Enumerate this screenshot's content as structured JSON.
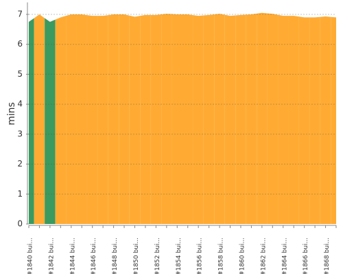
{
  "chart_data": {
    "type": "area",
    "y_label": "mins",
    "categories": [
      "#1840 bui...",
      null,
      "#1842 bui...",
      null,
      "#1844 bui...",
      null,
      "#1846 bui...",
      null,
      "#1848 bui...",
      null,
      "#1850 bui...",
      null,
      "#1852 bui...",
      null,
      "#1854 bui...",
      null,
      "#1856 bui...",
      null,
      "#1858 bui...",
      null,
      "#1860 bui...",
      null,
      "#1862 bui...",
      null,
      "#1864 bui...",
      null,
      "#1866 bui...",
      null,
      "#1868 bui...",
      null
    ],
    "values": [
      6.75,
      7.0,
      6.75,
      6.9,
      7.0,
      7.0,
      6.95,
      6.95,
      7.0,
      7.0,
      6.92,
      6.98,
      6.98,
      7.02,
      7.0,
      7.0,
      6.95,
      6.98,
      7.02,
      6.95,
      6.98,
      7.0,
      7.05,
      7.02,
      6.95,
      6.95,
      6.9,
      6.9,
      6.93,
      6.9
    ],
    "colors": [
      "#3a9a5f",
      "#ffab33",
      "#3a9a5f",
      "#ffab33",
      "#ffab33",
      "#ffab33",
      "#ffab33",
      "#ffab33",
      "#ffab33",
      "#ffab33",
      "#ffab33",
      "#ffab33",
      "#ffab33",
      "#ffab33",
      "#ffab33",
      "#ffab33",
      "#ffab33",
      "#ffab33",
      "#ffab33",
      "#ffab33",
      "#ffab33",
      "#ffab33",
      "#ffab33",
      "#ffab33",
      "#ffab33",
      "#ffab33",
      "#ffab33",
      "#ffab33",
      "#ffab33",
      "#ffab33"
    ],
    "ylim": [
      0,
      7.4
    ],
    "yticks": [
      0,
      1,
      2,
      3,
      4,
      5,
      6,
      7
    ],
    "grid": true
  }
}
